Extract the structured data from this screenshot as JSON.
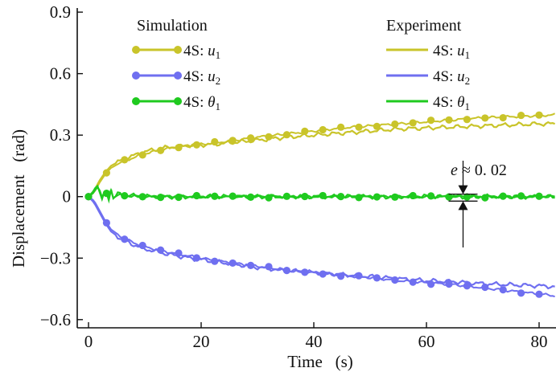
{
  "chart_data": {
    "type": "line",
    "xlabel": "Time   (s)",
    "ylabel": "Displacement   (rad)",
    "xlim": [
      -2,
      83
    ],
    "ylim": [
      -0.64,
      0.92
    ],
    "xticks": [
      0,
      20,
      40,
      60,
      80
    ],
    "xtick_labels": [
      "0",
      "20",
      "40",
      "60",
      "80"
    ],
    "yticks": [
      -0.6,
      -0.3,
      0,
      0.3,
      0.6,
      0.9
    ],
    "ytick_labels": [
      "−0.6",
      "−0.3",
      "0",
      "0.3",
      "0.6",
      "0.9"
    ],
    "legend": {
      "placement": "top",
      "simulation_title": "Simulation",
      "experiment_title": "Experiment",
      "simulation_entries": [
        "4S: u1",
        "4S: u2",
        "4S: θ1"
      ],
      "experiment_entries": [
        "4S: u1",
        "4S: u2",
        "4S: θ1"
      ]
    },
    "annotation": {
      "text": "e ≈ 0. 02",
      "x": 66.5,
      "y_center": -0.005,
      "half_gap": 0.017
    },
    "colors": {
      "u1": "#c9c42a",
      "u2": "#6f6ff0",
      "theta1": "#1fca1f"
    },
    "series": [
      {
        "name": "Simulation 4S: u1",
        "kind": "simulation",
        "color": "#c9c42a",
        "x": [
          0,
          1,
          2,
          3,
          4,
          6,
          8,
          10,
          14,
          18,
          22,
          26,
          30,
          35,
          40,
          45,
          50,
          55,
          60,
          65,
          70,
          75,
          80,
          83
        ],
        "y": [
          0,
          0.02,
          0.07,
          0.11,
          0.14,
          0.17,
          0.19,
          0.21,
          0.235,
          0.25,
          0.26,
          0.275,
          0.29,
          0.305,
          0.32,
          0.335,
          0.345,
          0.355,
          0.365,
          0.375,
          0.385,
          0.39,
          0.395,
          0.4
        ]
      },
      {
        "name": "Experiment 4S: u1",
        "kind": "experiment",
        "color": "#c9c42a",
        "x": [
          0,
          1,
          2,
          3,
          4,
          6,
          8,
          10,
          14,
          18,
          22,
          26,
          30,
          35,
          40,
          45,
          50,
          55,
          60,
          65,
          70,
          75,
          80,
          83
        ],
        "y": [
          0,
          0.03,
          0.08,
          0.12,
          0.15,
          0.18,
          0.2,
          0.22,
          0.24,
          0.25,
          0.255,
          0.265,
          0.275,
          0.29,
          0.3,
          0.31,
          0.32,
          0.33,
          0.335,
          0.34,
          0.345,
          0.35,
          0.355,
          0.355
        ]
      },
      {
        "name": "Simulation 4S: u2",
        "kind": "simulation",
        "color": "#6f6ff0",
        "x": [
          0,
          1,
          2,
          3,
          4,
          6,
          8,
          10,
          14,
          18,
          22,
          26,
          30,
          35,
          40,
          45,
          50,
          55,
          60,
          65,
          70,
          75,
          80,
          83
        ],
        "y": [
          0,
          -0.02,
          -0.07,
          -0.12,
          -0.16,
          -0.2,
          -0.225,
          -0.245,
          -0.27,
          -0.29,
          -0.31,
          -0.325,
          -0.34,
          -0.36,
          -0.37,
          -0.385,
          -0.395,
          -0.41,
          -0.42,
          -0.43,
          -0.445,
          -0.46,
          -0.475,
          -0.485
        ]
      },
      {
        "name": "Experiment 4S: u2",
        "kind": "experiment",
        "color": "#6f6ff0",
        "x": [
          0,
          1,
          2,
          3,
          4,
          6,
          8,
          10,
          14,
          18,
          22,
          26,
          30,
          35,
          40,
          45,
          50,
          55,
          60,
          65,
          70,
          75,
          80,
          83
        ],
        "y": [
          0,
          -0.03,
          -0.08,
          -0.13,
          -0.17,
          -0.21,
          -0.235,
          -0.255,
          -0.28,
          -0.3,
          -0.315,
          -0.33,
          -0.345,
          -0.36,
          -0.37,
          -0.38,
          -0.39,
          -0.4,
          -0.41,
          -0.415,
          -0.425,
          -0.43,
          -0.435,
          -0.44
        ]
      },
      {
        "name": "Simulation 4S: θ1",
        "kind": "simulation",
        "color": "#1fca1f",
        "x": [
          0,
          1,
          1.5,
          2,
          2.5,
          3,
          3.5,
          4,
          4.5,
          5,
          6,
          8,
          10,
          15,
          20,
          30,
          40,
          50,
          60,
          70,
          80,
          83
        ],
        "y": [
          0,
          0.02,
          0.05,
          0.03,
          -0.01,
          0.04,
          -0.02,
          0.03,
          -0.015,
          0.01,
          0.005,
          0.003,
          0.0,
          0.0,
          0.0,
          0.0,
          0.0,
          0.0,
          0.0,
          0.0,
          0.0,
          0.0
        ]
      },
      {
        "name": "Experiment 4S: θ1",
        "kind": "experiment",
        "color": "#1fca1f",
        "x": [
          0,
          1,
          1.5,
          2,
          2.5,
          3,
          3.5,
          4,
          4.5,
          5,
          6,
          8,
          10,
          15,
          20,
          30,
          40,
          50,
          60,
          70,
          80,
          83
        ],
        "y": [
          0,
          0.03,
          0.06,
          0.02,
          -0.02,
          0.05,
          -0.03,
          0.035,
          -0.02,
          0.015,
          0.008,
          0.004,
          0.0,
          0.0,
          0.0,
          0.0,
          0.0,
          0.0,
          0.0,
          0.0,
          0.0,
          0.0
        ]
      }
    ]
  }
}
